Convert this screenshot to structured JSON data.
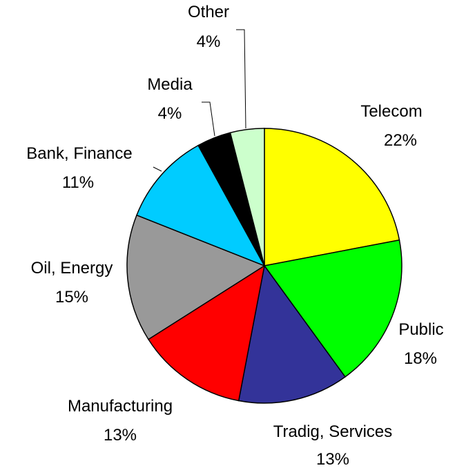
{
  "chart_data": {
    "type": "pie",
    "title": "",
    "start_angle_deg": 0,
    "direction": "clockwise",
    "legend": "none",
    "slices": [
      {
        "label": "Telecom",
        "value": 22,
        "value_label": "22%",
        "color": "#FFFF00"
      },
      {
        "label": "Public",
        "value": 18,
        "value_label": "18%",
        "color": "#00FF00"
      },
      {
        "label": "Tradig, Services",
        "value": 13,
        "value_label": "13%",
        "color": "#333399"
      },
      {
        "label": "Manufacturing",
        "value": 13,
        "value_label": "13%",
        "color": "#FF0000"
      },
      {
        "label": "Oil, Energy",
        "value": 15,
        "value_label": "15%",
        "color": "#999999"
      },
      {
        "label": "Bank, Finance",
        "value": 11,
        "value_label": "11%",
        "color": "#00CCFF"
      },
      {
        "label": "Media",
        "value": 4,
        "value_label": "4%",
        "color": "#000000"
      },
      {
        "label": "Other",
        "value": 4,
        "value_label": "4%",
        "color": "#CCFFCC"
      }
    ]
  }
}
